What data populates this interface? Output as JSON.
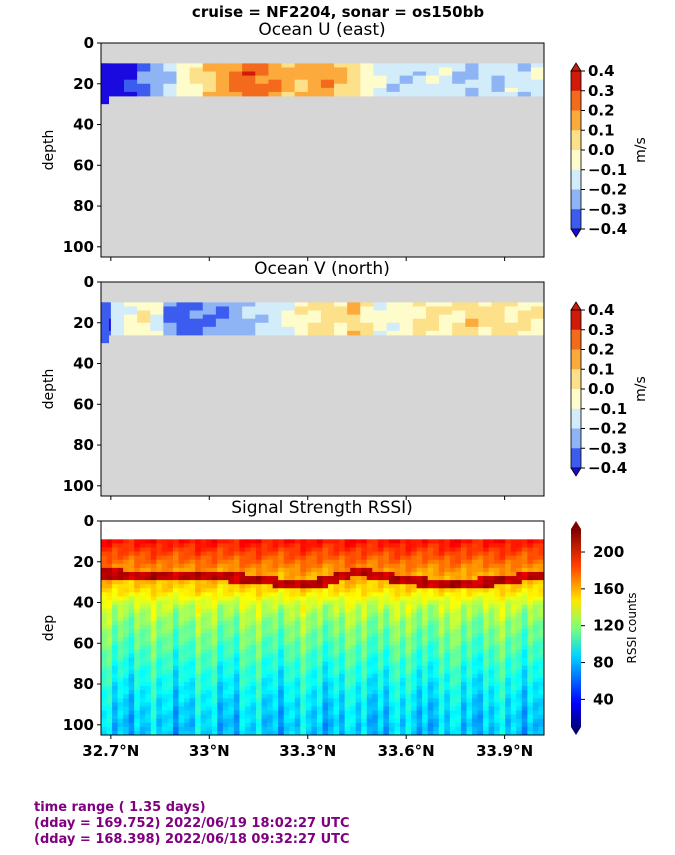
{
  "suptitle": "cruise = NF2204,  sonar = os150bb",
  "panels": [
    {
      "id": "u",
      "title": "Ocean U (east)",
      "ylabel": "depth",
      "colorbar_label": "m/s",
      "colorbar_ticks": [
        "0.4",
        "0.3",
        "0.2",
        "0.1",
        "0.0",
        "−0.1",
        "−0.2",
        "−0.3",
        "−0.4"
      ]
    },
    {
      "id": "v",
      "title": "Ocean V (north)",
      "ylabel": "depth",
      "colorbar_label": "m/s",
      "colorbar_ticks": [
        "0.4",
        "0.3",
        "0.2",
        "0.1",
        "0.0",
        "−0.1",
        "−0.2",
        "−0.3",
        "−0.4"
      ]
    },
    {
      "id": "rssi",
      "title": "Signal Strength RSSI)",
      "ylabel": "dep",
      "colorbar_label": "RSSI counts",
      "colorbar_ticks": [
        "200",
        "160",
        "120",
        "80",
        "40"
      ]
    }
  ],
  "y_ticks": [
    "0",
    "20",
    "40",
    "60",
    "80",
    "100"
  ],
  "x_ticks": [
    "32.7°N",
    "33°N",
    "33.3°N",
    "33.6°N",
    "33.9°N"
  ],
  "footer": {
    "line1": "time range ( 1.35 days)",
    "line2": "(dday = 169.752) 2022/06/19 18:02:27 UTC",
    "line3": "(dday = 168.398) 2022/06/18 09:32:27 UTC"
  },
  "chart_data": [
    {
      "type": "heatmap",
      "title": "Ocean U (east)",
      "ylabel": "depth",
      "xlabel": "",
      "x_range_deg_N": [
        32.67,
        34.02
      ],
      "y_range_depth": [
        105,
        0
      ],
      "valid_depth_range": [
        10,
        26
      ],
      "colorbar": {
        "label": "m/s",
        "range": [
          -0.4,
          0.4
        ],
        "step": 0.1
      },
      "colors_bins": [
        "#1a0ae0",
        "#3c5cf0",
        "#8eb4f5",
        "#d2ecfa",
        "#fffccc",
        "#fde08a",
        "#fcaa3c",
        "#f46a1c",
        "#d11a0a"
      ],
      "profile_cells": [
        {
          "x": 32.68,
          "v": -0.35
        },
        {
          "x": 32.72,
          "v": -0.38
        },
        {
          "x": 32.76,
          "v": -0.3
        },
        {
          "x": 32.8,
          "v": -0.22
        },
        {
          "x": 32.84,
          "v": -0.15
        },
        {
          "x": 32.88,
          "v": -0.1
        },
        {
          "x": 32.92,
          "v": 0.05
        },
        {
          "x": 32.96,
          "v": 0.12
        },
        {
          "x": 33.0,
          "v": 0.18
        },
        {
          "x": 33.04,
          "v": 0.25
        },
        {
          "x": 33.08,
          "v": 0.33
        },
        {
          "x": 33.12,
          "v": 0.36
        },
        {
          "x": 33.16,
          "v": 0.32
        },
        {
          "x": 33.2,
          "v": 0.28
        },
        {
          "x": 33.24,
          "v": 0.24
        },
        {
          "x": 33.28,
          "v": 0.22
        },
        {
          "x": 33.32,
          "v": 0.25
        },
        {
          "x": 33.36,
          "v": 0.28
        },
        {
          "x": 33.4,
          "v": 0.2
        },
        {
          "x": 33.44,
          "v": 0.15
        },
        {
          "x": 33.48,
          "v": 0.05
        },
        {
          "x": 33.52,
          "v": -0.02
        },
        {
          "x": 33.56,
          "v": -0.06
        },
        {
          "x": 33.6,
          "v": -0.08
        },
        {
          "x": 33.64,
          "v": -0.06
        },
        {
          "x": 33.68,
          "v": -0.04
        },
        {
          "x": 33.72,
          "v": -0.03
        },
        {
          "x": 33.76,
          "v": -0.08
        },
        {
          "x": 33.8,
          "v": -0.12
        },
        {
          "x": 33.84,
          "v": -0.05
        },
        {
          "x": 33.88,
          "v": -0.1
        },
        {
          "x": 33.92,
          "v": -0.04
        },
        {
          "x": 33.96,
          "v": -0.08
        },
        {
          "x": 34.0,
          "v": -0.02
        }
      ]
    },
    {
      "type": "heatmap",
      "title": "Ocean V (north)",
      "ylabel": "depth",
      "xlabel": "",
      "x_range_deg_N": [
        32.67,
        34.02
      ],
      "y_range_depth": [
        105,
        0
      ],
      "valid_depth_range": [
        10,
        26
      ],
      "colorbar": {
        "label": "m/s",
        "range": [
          -0.4,
          0.4
        ],
        "step": 0.1
      },
      "colors_bins": [
        "#1a0ae0",
        "#3c5cf0",
        "#8eb4f5",
        "#d2ecfa",
        "#fffccc",
        "#fde08a",
        "#fcaa3c",
        "#f46a1c",
        "#d11a0a"
      ],
      "profile_cells": [
        {
          "x": 32.68,
          "v": -0.3
        },
        {
          "x": 32.72,
          "v": -0.05
        },
        {
          "x": 32.76,
          "v": 0.02
        },
        {
          "x": 32.8,
          "v": 0.1
        },
        {
          "x": 32.84,
          "v": -0.02
        },
        {
          "x": 32.88,
          "v": -0.22
        },
        {
          "x": 32.92,
          "v": -0.25
        },
        {
          "x": 32.96,
          "v": -0.22
        },
        {
          "x": 33.0,
          "v": -0.2
        },
        {
          "x": 33.04,
          "v": -0.18
        },
        {
          "x": 33.08,
          "v": -0.15
        },
        {
          "x": 33.12,
          "v": -0.12
        },
        {
          "x": 33.16,
          "v": -0.08
        },
        {
          "x": 33.2,
          "v": -0.05
        },
        {
          "x": 33.24,
          "v": 0.02
        },
        {
          "x": 33.28,
          "v": 0.08
        },
        {
          "x": 33.32,
          "v": 0.12
        },
        {
          "x": 33.36,
          "v": 0.15
        },
        {
          "x": 33.4,
          "v": 0.12
        },
        {
          "x": 33.44,
          "v": 0.18
        },
        {
          "x": 33.48,
          "v": 0.1
        },
        {
          "x": 33.52,
          "v": 0.04
        },
        {
          "x": 33.56,
          "v": 0.02
        },
        {
          "x": 33.6,
          "v": 0.05
        },
        {
          "x": 33.64,
          "v": 0.12
        },
        {
          "x": 33.68,
          "v": 0.14
        },
        {
          "x": 33.72,
          "v": 0.08
        },
        {
          "x": 33.76,
          "v": 0.12
        },
        {
          "x": 33.8,
          "v": 0.16
        },
        {
          "x": 33.84,
          "v": 0.12
        },
        {
          "x": 33.88,
          "v": 0.15
        },
        {
          "x": 33.92,
          "v": 0.1
        },
        {
          "x": 33.96,
          "v": 0.14
        },
        {
          "x": 34.0,
          "v": 0.08
        }
      ]
    },
    {
      "type": "heatmap",
      "title": "Signal Strength RSSI)",
      "ylabel": "dep",
      "xlabel": "",
      "x_range_deg_N": [
        32.67,
        34.02
      ],
      "y_range_depth": [
        105,
        0
      ],
      "valid_depth_range": [
        9,
        105
      ],
      "colorbar": {
        "label": "RSSI counts",
        "range": [
          10,
          225
        ],
        "ticks": [
          40,
          80,
          120,
          160,
          200
        ]
      },
      "depth_profile_typical": [
        {
          "depth": 10,
          "rssi": 195
        },
        {
          "depth": 15,
          "rssi": 185
        },
        {
          "depth": 20,
          "rssi": 175
        },
        {
          "depth": 25,
          "rssi": 165
        },
        {
          "depth": 30,
          "rssi": 210
        },
        {
          "depth": 35,
          "rssi": 150
        },
        {
          "depth": 40,
          "rssi": 135
        },
        {
          "depth": 50,
          "rssi": 120
        },
        {
          "depth": 60,
          "rssi": 110
        },
        {
          "depth": 70,
          "rssi": 100
        },
        {
          "depth": 80,
          "rssi": 92
        },
        {
          "depth": 90,
          "rssi": 85
        },
        {
          "depth": 100,
          "rssi": 80
        }
      ],
      "bright_layer_depth_by_x": [
        {
          "x": 32.7,
          "d": 26
        },
        {
          "x": 32.9,
          "d": 27
        },
        {
          "x": 33.1,
          "d": 28
        },
        {
          "x": 33.25,
          "d": 31
        },
        {
          "x": 33.35,
          "d": 30
        },
        {
          "x": 33.45,
          "d": 25
        },
        {
          "x": 33.55,
          "d": 28
        },
        {
          "x": 33.7,
          "d": 31
        },
        {
          "x": 33.85,
          "d": 30
        },
        {
          "x": 34.0,
          "d": 27
        }
      ]
    }
  ]
}
